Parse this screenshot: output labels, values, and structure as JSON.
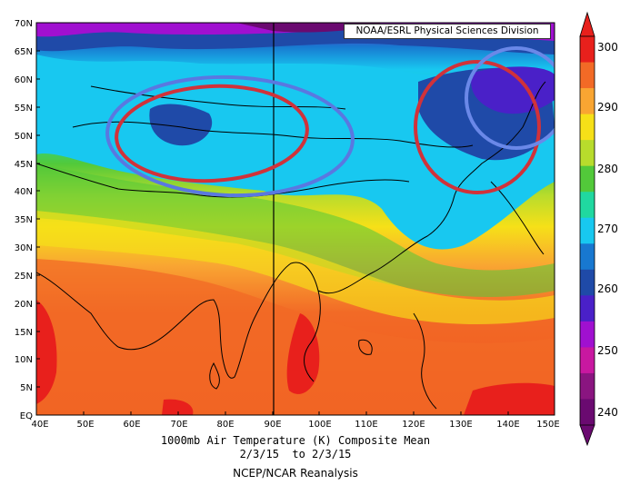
{
  "credit": "NOAA/ESRL Physical Sciences Division",
  "caption": {
    "line1": "1000mb Air Temperature (K) Composite Mean",
    "line2": "2/3/15  to 2/3/15",
    "line3": "NCEP/NCAR Reanalysis"
  },
  "lat_ticks": [
    "EQ",
    "5N",
    "10N",
    "15N",
    "20N",
    "25N",
    "30N",
    "35N",
    "40N",
    "45N",
    "50N",
    "55N",
    "60N",
    "65N",
    "70N"
  ],
  "lon_ticks": [
    "40E",
    "50E",
    "60E",
    "70E",
    "80E",
    "90E",
    "100E",
    "110E",
    "120E",
    "130E",
    "140E",
    "150E"
  ],
  "colorbar": {
    "labels": [
      "300",
      "290",
      "280",
      "270",
      "260",
      "250",
      "240"
    ],
    "colors": [
      "#e8201c",
      "#f26a26",
      "#f9a532",
      "#f6e018",
      "#b8dc2c",
      "#52c93a",
      "#20d8a0",
      "#18c8f0",
      "#1878d0",
      "#1f4aa8",
      "#4a20c8",
      "#a010d0",
      "#c818a0",
      "#8a1580",
      "#6a0a70"
    ]
  },
  "annotations": [
    {
      "id": "red-ellipse-central-asia",
      "color": "#d0323a"
    },
    {
      "id": "blue-ellipse-central-asia",
      "color": "#5a78e0"
    },
    {
      "id": "red-ellipse-northeast-asia",
      "color": "#d0323a"
    },
    {
      "id": "blue-ellipse-far-east",
      "color": "#6a88e8"
    }
  ]
}
